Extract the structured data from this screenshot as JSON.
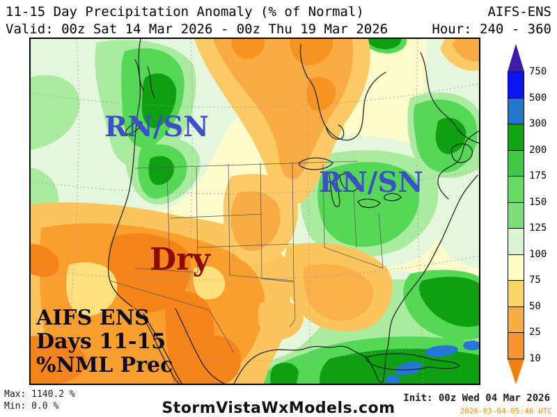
{
  "header": {
    "title": "11-15 Day Precipitation Anomaly (% of Normal)",
    "model": "AIFS-ENS",
    "valid": "Valid: 00z Sat 14 Mar 2026 - 00z Thu 19 Mar 2026",
    "hour": "Hour: 240 - 360"
  },
  "map": {
    "label_rnsn_nw": "RN/SN",
    "label_rnsn_ne": "RN/SN",
    "label_dry": "Dry",
    "annotation_line1": "AIFS ENS",
    "annotation_line2": "Days 11-15",
    "annotation_line3": "%NML Prec",
    "label_color_rnsn": "#3C4FC8",
    "label_color_dry": "#8E0A0A",
    "label_color_annotation": "#0A0A20"
  },
  "colorbar": {
    "values": [
      "750",
      "500",
      "300",
      "200",
      "175",
      "150",
      "125",
      "100",
      "75",
      "50",
      "25",
      "10"
    ],
    "segment_colors": [
      "#0B16EE",
      "#2277CC",
      "#0FA312",
      "#41C844",
      "#64DC64",
      "#7CDF7C",
      "#D9F5D2",
      "#FDFDC8",
      "#FBD468",
      "#FAAD42",
      "#F9952B"
    ],
    "arrow_top_color": "#3D1CA8",
    "arrow_bottom_color": "#F67F12"
  },
  "footer": {
    "max": "Max: 1140.2 %",
    "min": "Min: 0.0 %",
    "site": "StormVistaWxModels.com",
    "init": "Init: 00z Wed 04 Mar 2026",
    "timestamp": "2026-03-04-05:46 UTC",
    "timestamp_color": "#F98A00"
  }
}
